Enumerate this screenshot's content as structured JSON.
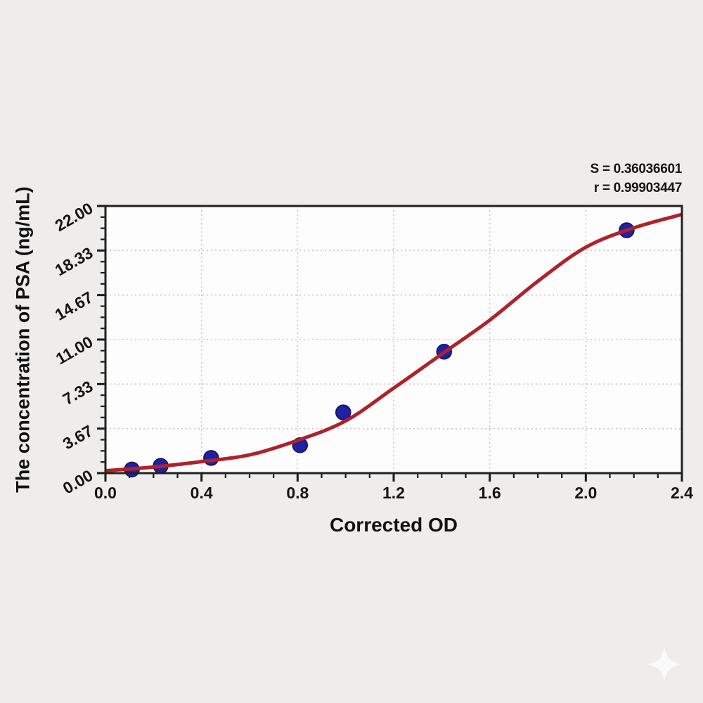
{
  "annotation": {
    "line1": "S = 0.36036601",
    "line2": "r = 0.99903447"
  },
  "chart_data": {
    "type": "scatter",
    "title": "",
    "xlabel": "Corrected OD",
    "ylabel": "The concentration of PSA (ng/mL)",
    "xlim": [
      0,
      2.4
    ],
    "ylim": [
      0,
      22
    ],
    "x_ticks": [
      0,
      0.4,
      0.8,
      1.2,
      1.6,
      2.0,
      2.4
    ],
    "x_tick_labels": [
      "0.0",
      "0.4",
      "0.8",
      "1.2",
      "1.6",
      "2.0",
      "2.4"
    ],
    "y_ticks": [
      0,
      3.6667,
      7.3333,
      11,
      14.6667,
      18.3333,
      22
    ],
    "y_tick_labels": [
      "0.00",
      "3.67",
      "7.33",
      "11.00",
      "14.67",
      "18.33",
      "22.00"
    ],
    "x_minor_divisions": 4,
    "y_minor_divisions": 4,
    "grid": "dotted-at-major-ticks",
    "legend": "none",
    "points": [
      {
        "x": 0.11,
        "y": 0.3
      },
      {
        "x": 0.23,
        "y": 0.6
      },
      {
        "x": 0.44,
        "y": 1.25
      },
      {
        "x": 0.81,
        "y": 2.3
      },
      {
        "x": 0.99,
        "y": 5.0
      },
      {
        "x": 1.41,
        "y": 10.0
      },
      {
        "x": 2.17,
        "y": 20.0
      }
    ],
    "fit_curve": [
      [
        0.0,
        0.2
      ],
      [
        0.2,
        0.5
      ],
      [
        0.4,
        0.95
      ],
      [
        0.6,
        1.5
      ],
      [
        0.8,
        2.7
      ],
      [
        1.0,
        4.3
      ],
      [
        1.2,
        7.0
      ],
      [
        1.4,
        9.8
      ],
      [
        1.6,
        12.6
      ],
      [
        1.8,
        15.8
      ],
      [
        2.0,
        18.6
      ],
      [
        2.2,
        20.2
      ],
      [
        2.4,
        21.3
      ]
    ],
    "statistics": {
      "S": "0.36036601",
      "r": "0.99903447"
    },
    "colors": {
      "curve": "#ae2229",
      "point_fill": "#2120a2",
      "point_edge": "#131353",
      "grid": "#c7c7c7",
      "axis": "#1a1a1a",
      "text": "#141414",
      "plot_bg": "#fdfdfd",
      "page_bg": "#eeedec",
      "watermark": "#ffffff"
    }
  }
}
